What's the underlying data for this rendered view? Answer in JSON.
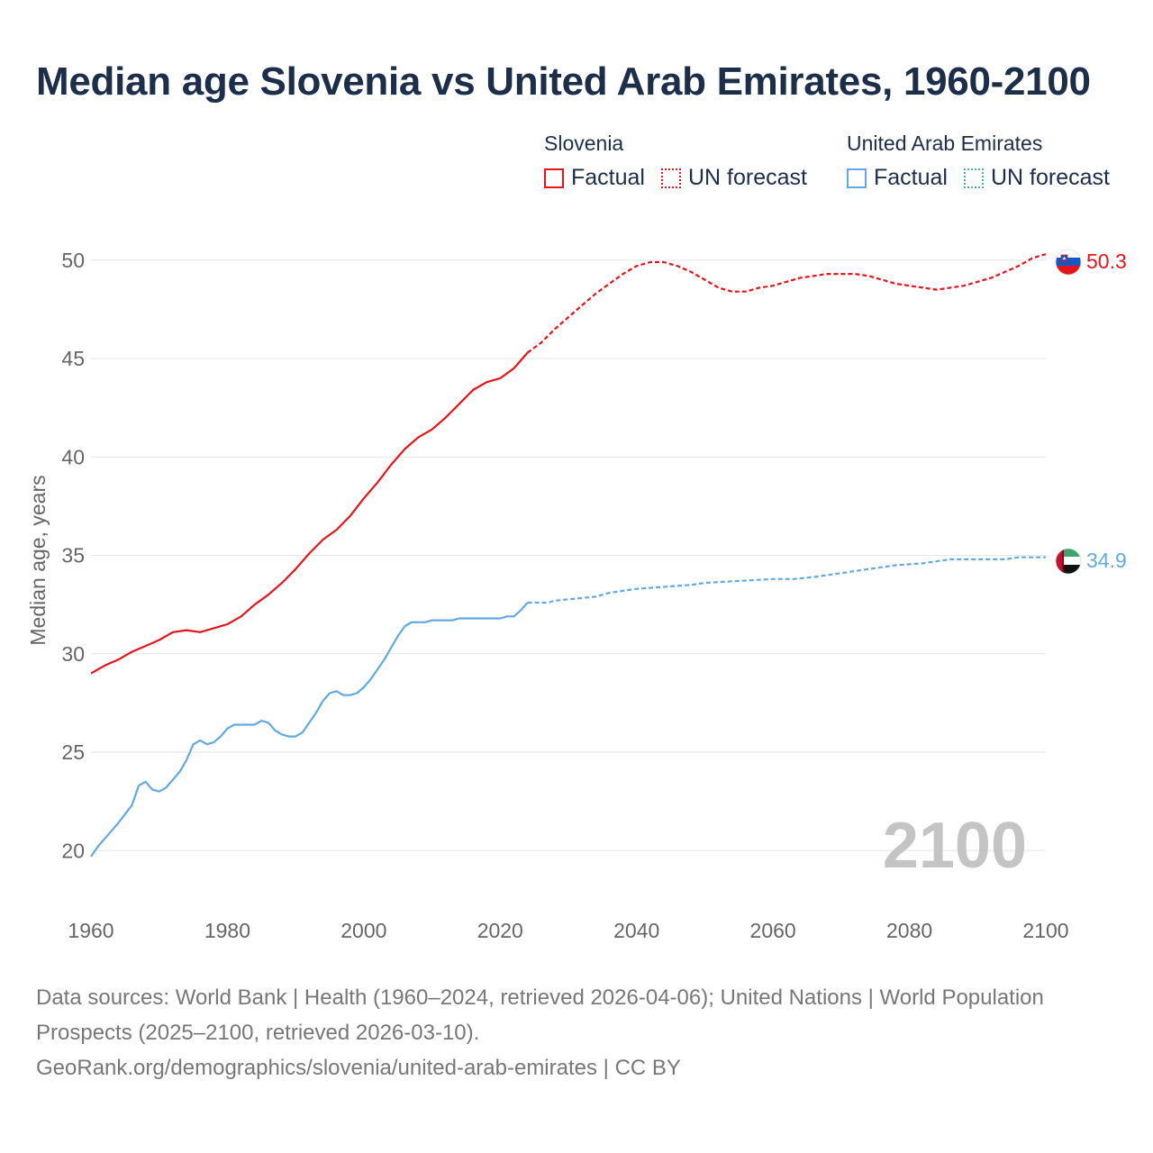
{
  "title": "Median age Slovenia vs United Arab Emirates, 1960-2100",
  "legend": {
    "slovenia": {
      "name": "Slovenia",
      "factual_label": "Factual",
      "forecast_label": "UN forecast",
      "color": "#e8141c"
    },
    "uae": {
      "name": "United Arab Emirates",
      "factual_label": "Factual",
      "forecast_label": "UN forecast",
      "color": "#62a8e5"
    }
  },
  "year_watermark": "2100",
  "footer": {
    "sources": "Data sources: World Bank | Health (1960–2024, retrieved 2026-04-06); United Nations | World Population Prospects (2025–2100, retrieved 2026-03-10).",
    "credit": "GeoRank.org/demographics/slovenia/united-arab-emirates | CC BY"
  },
  "chart_data": {
    "type": "line",
    "title": "Median age Slovenia vs United Arab Emirates, 1960-2100",
    "xlabel": "",
    "ylabel": "Median age, years",
    "xlim": [
      1960,
      2100
    ],
    "ylim": [
      18,
      51.5
    ],
    "x_ticks": [
      1960,
      1980,
      2000,
      2020,
      2040,
      2060,
      2080,
      2100
    ],
    "y_ticks": [
      20,
      25,
      30,
      35,
      40,
      45,
      50
    ],
    "grid": true,
    "series": [
      {
        "name": "Slovenia",
        "color": "#e8141c",
        "end_label": "50.3",
        "factual": [
          [
            1960,
            29.0
          ],
          [
            1962,
            29.4
          ],
          [
            1964,
            29.7
          ],
          [
            1966,
            30.1
          ],
          [
            1968,
            30.4
          ],
          [
            1970,
            30.7
          ],
          [
            1972,
            31.1
          ],
          [
            1974,
            31.2
          ],
          [
            1976,
            31.1
          ],
          [
            1978,
            31.3
          ],
          [
            1980,
            31.5
          ],
          [
            1982,
            31.9
          ],
          [
            1984,
            32.5
          ],
          [
            1986,
            33.0
          ],
          [
            1988,
            33.6
          ],
          [
            1990,
            34.3
          ],
          [
            1992,
            35.1
          ],
          [
            1994,
            35.8
          ],
          [
            1996,
            36.3
          ],
          [
            1998,
            37.0
          ],
          [
            2000,
            37.9
          ],
          [
            2002,
            38.7
          ],
          [
            2004,
            39.6
          ],
          [
            2006,
            40.4
          ],
          [
            2008,
            41.0
          ],
          [
            2010,
            41.4
          ],
          [
            2012,
            42.0
          ],
          [
            2014,
            42.7
          ],
          [
            2016,
            43.4
          ],
          [
            2018,
            43.8
          ],
          [
            2020,
            44.0
          ],
          [
            2022,
            44.5
          ],
          [
            2024,
            45.3
          ]
        ],
        "forecast": [
          [
            2024,
            45.3
          ],
          [
            2026,
            45.8
          ],
          [
            2028,
            46.5
          ],
          [
            2030,
            47.1
          ],
          [
            2032,
            47.7
          ],
          [
            2034,
            48.3
          ],
          [
            2036,
            48.8
          ],
          [
            2038,
            49.3
          ],
          [
            2040,
            49.7
          ],
          [
            2042,
            49.9
          ],
          [
            2044,
            49.9
          ],
          [
            2046,
            49.7
          ],
          [
            2048,
            49.4
          ],
          [
            2050,
            49.0
          ],
          [
            2052,
            48.6
          ],
          [
            2054,
            48.4
          ],
          [
            2056,
            48.4
          ],
          [
            2058,
            48.6
          ],
          [
            2060,
            48.7
          ],
          [
            2062,
            48.9
          ],
          [
            2064,
            49.1
          ],
          [
            2066,
            49.2
          ],
          [
            2068,
            49.3
          ],
          [
            2070,
            49.3
          ],
          [
            2072,
            49.3
          ],
          [
            2074,
            49.2
          ],
          [
            2076,
            49.0
          ],
          [
            2078,
            48.8
          ],
          [
            2080,
            48.7
          ],
          [
            2082,
            48.6
          ],
          [
            2084,
            48.5
          ],
          [
            2086,
            48.6
          ],
          [
            2088,
            48.7
          ],
          [
            2090,
            48.9
          ],
          [
            2092,
            49.1
          ],
          [
            2094,
            49.4
          ],
          [
            2096,
            49.7
          ],
          [
            2098,
            50.1
          ],
          [
            2100,
            50.3
          ]
        ]
      },
      {
        "name": "United Arab Emirates",
        "color": "#62a8e5",
        "end_label": "34.9",
        "factual": [
          [
            1960,
            19.7
          ],
          [
            1961,
            20.2
          ],
          [
            1962,
            20.6
          ],
          [
            1964,
            21.4
          ],
          [
            1966,
            22.3
          ],
          [
            1967,
            23.3
          ],
          [
            1968,
            23.5
          ],
          [
            1969,
            23.1
          ],
          [
            1970,
            23.0
          ],
          [
            1971,
            23.2
          ],
          [
            1973,
            24.0
          ],
          [
            1974,
            24.6
          ],
          [
            1975,
            25.4
          ],
          [
            1976,
            25.6
          ],
          [
            1977,
            25.4
          ],
          [
            1978,
            25.5
          ],
          [
            1979,
            25.8
          ],
          [
            1980,
            26.2
          ],
          [
            1981,
            26.4
          ],
          [
            1983,
            26.4
          ],
          [
            1984,
            26.4
          ],
          [
            1985,
            26.6
          ],
          [
            1986,
            26.5
          ],
          [
            1987,
            26.1
          ],
          [
            1988,
            25.9
          ],
          [
            1989,
            25.8
          ],
          [
            1990,
            25.8
          ],
          [
            1991,
            26.0
          ],
          [
            1992,
            26.5
          ],
          [
            1993,
            27.0
          ],
          [
            1994,
            27.6
          ],
          [
            1995,
            28.0
          ],
          [
            1996,
            28.1
          ],
          [
            1997,
            27.9
          ],
          [
            1998,
            27.9
          ],
          [
            1999,
            28.0
          ],
          [
            2000,
            28.3
          ],
          [
            2001,
            28.7
          ],
          [
            2002,
            29.2
          ],
          [
            2003,
            29.7
          ],
          [
            2004,
            30.3
          ],
          [
            2005,
            30.9
          ],
          [
            2006,
            31.4
          ],
          [
            2007,
            31.6
          ],
          [
            2008,
            31.6
          ],
          [
            2009,
            31.6
          ],
          [
            2010,
            31.7
          ],
          [
            2012,
            31.7
          ],
          [
            2013,
            31.7
          ],
          [
            2014,
            31.8
          ],
          [
            2016,
            31.8
          ],
          [
            2018,
            31.8
          ],
          [
            2020,
            31.8
          ],
          [
            2021,
            31.9
          ],
          [
            2022,
            31.9
          ],
          [
            2023,
            32.2
          ],
          [
            2024,
            32.6
          ]
        ],
        "forecast": [
          [
            2024,
            32.6
          ],
          [
            2027,
            32.6
          ],
          [
            2028,
            32.7
          ],
          [
            2031,
            32.8
          ],
          [
            2034,
            32.9
          ],
          [
            2036,
            33.1
          ],
          [
            2040,
            33.3
          ],
          [
            2044,
            33.4
          ],
          [
            2048,
            33.5
          ],
          [
            2050,
            33.6
          ],
          [
            2055,
            33.7
          ],
          [
            2060,
            33.8
          ],
          [
            2063,
            33.8
          ],
          [
            2066,
            33.9
          ],
          [
            2070,
            34.1
          ],
          [
            2074,
            34.3
          ],
          [
            2078,
            34.5
          ],
          [
            2082,
            34.6
          ],
          [
            2086,
            34.8
          ],
          [
            2090,
            34.8
          ],
          [
            2094,
            34.8
          ],
          [
            2096,
            34.9
          ],
          [
            2100,
            34.9
          ]
        ]
      }
    ]
  }
}
